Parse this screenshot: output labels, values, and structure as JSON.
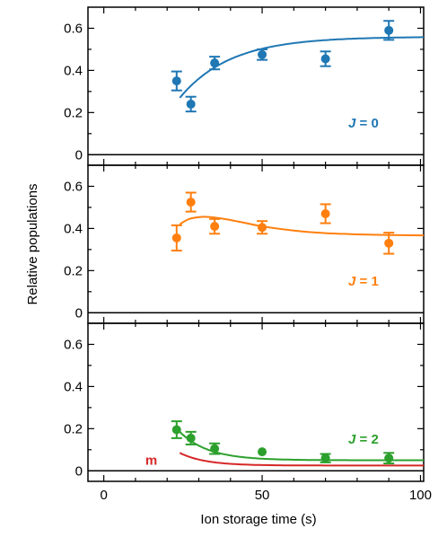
{
  "chart_data": {
    "type": "scatter",
    "xlabel": "Ion storage time (s)",
    "ylabel": "Relative populations",
    "xlim": [
      -5,
      101
    ],
    "x_ticks": [
      "0",
      "50",
      "100"
    ],
    "x_tick_values": [
      0,
      50,
      100
    ],
    "y_ticks": [
      "0",
      "0.2",
      "0.4",
      "0.6"
    ],
    "y_tick_values": [
      0,
      0.2,
      0.4,
      0.6
    ],
    "panels": [
      {
        "label": "J = 0",
        "label_letter": "J",
        "label_rest": " = 0",
        "color": "#1f77b4",
        "ylim": [
          -0.05,
          0.7
        ],
        "points": [
          {
            "x": 23,
            "y": 0.35,
            "err": 0.045
          },
          {
            "x": 27.5,
            "y": 0.24,
            "err": 0.035
          },
          {
            "x": 35,
            "y": 0.435,
            "err": 0.03
          },
          {
            "x": 50,
            "y": 0.475,
            "err": 0.025
          },
          {
            "x": 70,
            "y": 0.455,
            "err": 0.035
          },
          {
            "x": 90,
            "y": 0.59,
            "err": 0.045
          }
        ],
        "fit": {
          "x0": 24,
          "A": 0.56,
          "B": 0.29,
          "tau": 16,
          "x_end": 101
        }
      },
      {
        "label": "J = 1",
        "label_letter": "J",
        "label_rest": " = 1",
        "color": "#ff7f0e",
        "ylim": [
          -0.05,
          0.7
        ],
        "points": [
          {
            "x": 23,
            "y": 0.355,
            "err": 0.06
          },
          {
            "x": 27.5,
            "y": 0.525,
            "err": 0.045
          },
          {
            "x": 35,
            "y": 0.41,
            "err": 0.035
          },
          {
            "x": 50,
            "y": 0.405,
            "err": 0.03
          },
          {
            "x": 70,
            "y": 0.47,
            "err": 0.045
          },
          {
            "x": 90,
            "y": 0.33,
            "err": 0.05
          }
        ],
        "fit_points": [
          [
            24,
            0.42
          ],
          [
            27,
            0.445
          ],
          [
            31,
            0.455
          ],
          [
            35,
            0.452
          ],
          [
            40,
            0.44
          ],
          [
            45,
            0.425
          ],
          [
            50,
            0.41
          ],
          [
            60,
            0.39
          ],
          [
            70,
            0.378
          ],
          [
            80,
            0.372
          ],
          [
            90,
            0.369
          ],
          [
            101,
            0.367
          ]
        ]
      },
      {
        "label": "J = 2",
        "label_letter": "J",
        "label_rest": " = 2",
        "color": "#2ca02c",
        "ylim": [
          -0.05,
          0.7
        ],
        "points": [
          {
            "x": 23,
            "y": 0.195,
            "err": 0.04
          },
          {
            "x": 27.5,
            "y": 0.155,
            "err": 0.03
          },
          {
            "x": 35,
            "y": 0.105,
            "err": 0.025
          },
          {
            "x": 50,
            "y": 0.09,
            "err": 0
          },
          {
            "x": 70,
            "y": 0.06,
            "err": 0.02
          },
          {
            "x": 90,
            "y": 0.06,
            "err": 0.025
          }
        ],
        "fit": {
          "x0": 24,
          "A": 0.05,
          "B": 0.135,
          "tau": 9,
          "x_end": 101
        },
        "extra_label": "m",
        "extra_color": "#d62728",
        "extra_fit": {
          "x0": 24,
          "A": 0.025,
          "B": 0.06,
          "tau": 8,
          "x_end": 101
        }
      }
    ]
  }
}
